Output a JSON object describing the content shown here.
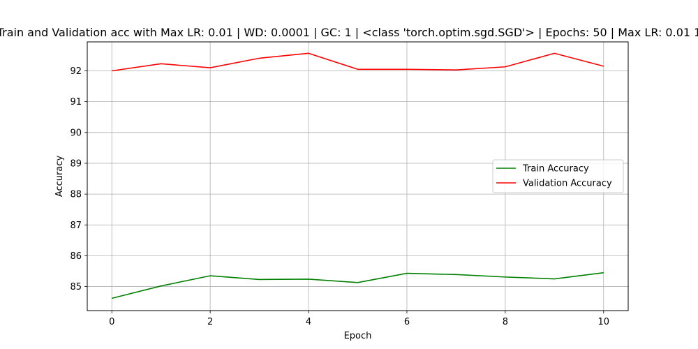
{
  "chart_data": {
    "type": "line",
    "title": "Train and Validation acc with Max LR: 0.01 | WD: 0.0001 | GC: 1 | <class 'torch.optim.sgd.SGD'> | Epochs: 50 | Max LR: 0.01 1",
    "xlabel": "Epoch",
    "ylabel": "Accuracy",
    "xlim": [
      -0.5,
      10.5
    ],
    "ylim": [
      84.22,
      92.94
    ],
    "xticks": [
      0,
      2,
      4,
      6,
      8,
      10
    ],
    "yticks": [
      85,
      86,
      87,
      88,
      89,
      90,
      91,
      92
    ],
    "grid": true,
    "legend_position": "center-right",
    "x": [
      0,
      1,
      2,
      3,
      4,
      5,
      6,
      7,
      8,
      9,
      10
    ],
    "series": [
      {
        "name": "Train Accuracy",
        "color": "#008000",
        "values": [
          84.62,
          85.02,
          85.35,
          85.23,
          85.24,
          85.13,
          85.43,
          85.39,
          85.31,
          85.25,
          85.45
        ]
      },
      {
        "name": "Validation Accuracy",
        "color": "#ff0000",
        "values": [
          92.0,
          92.23,
          92.1,
          92.41,
          92.57,
          92.05,
          92.05,
          92.03,
          92.13,
          92.57,
          92.15
        ]
      }
    ]
  }
}
